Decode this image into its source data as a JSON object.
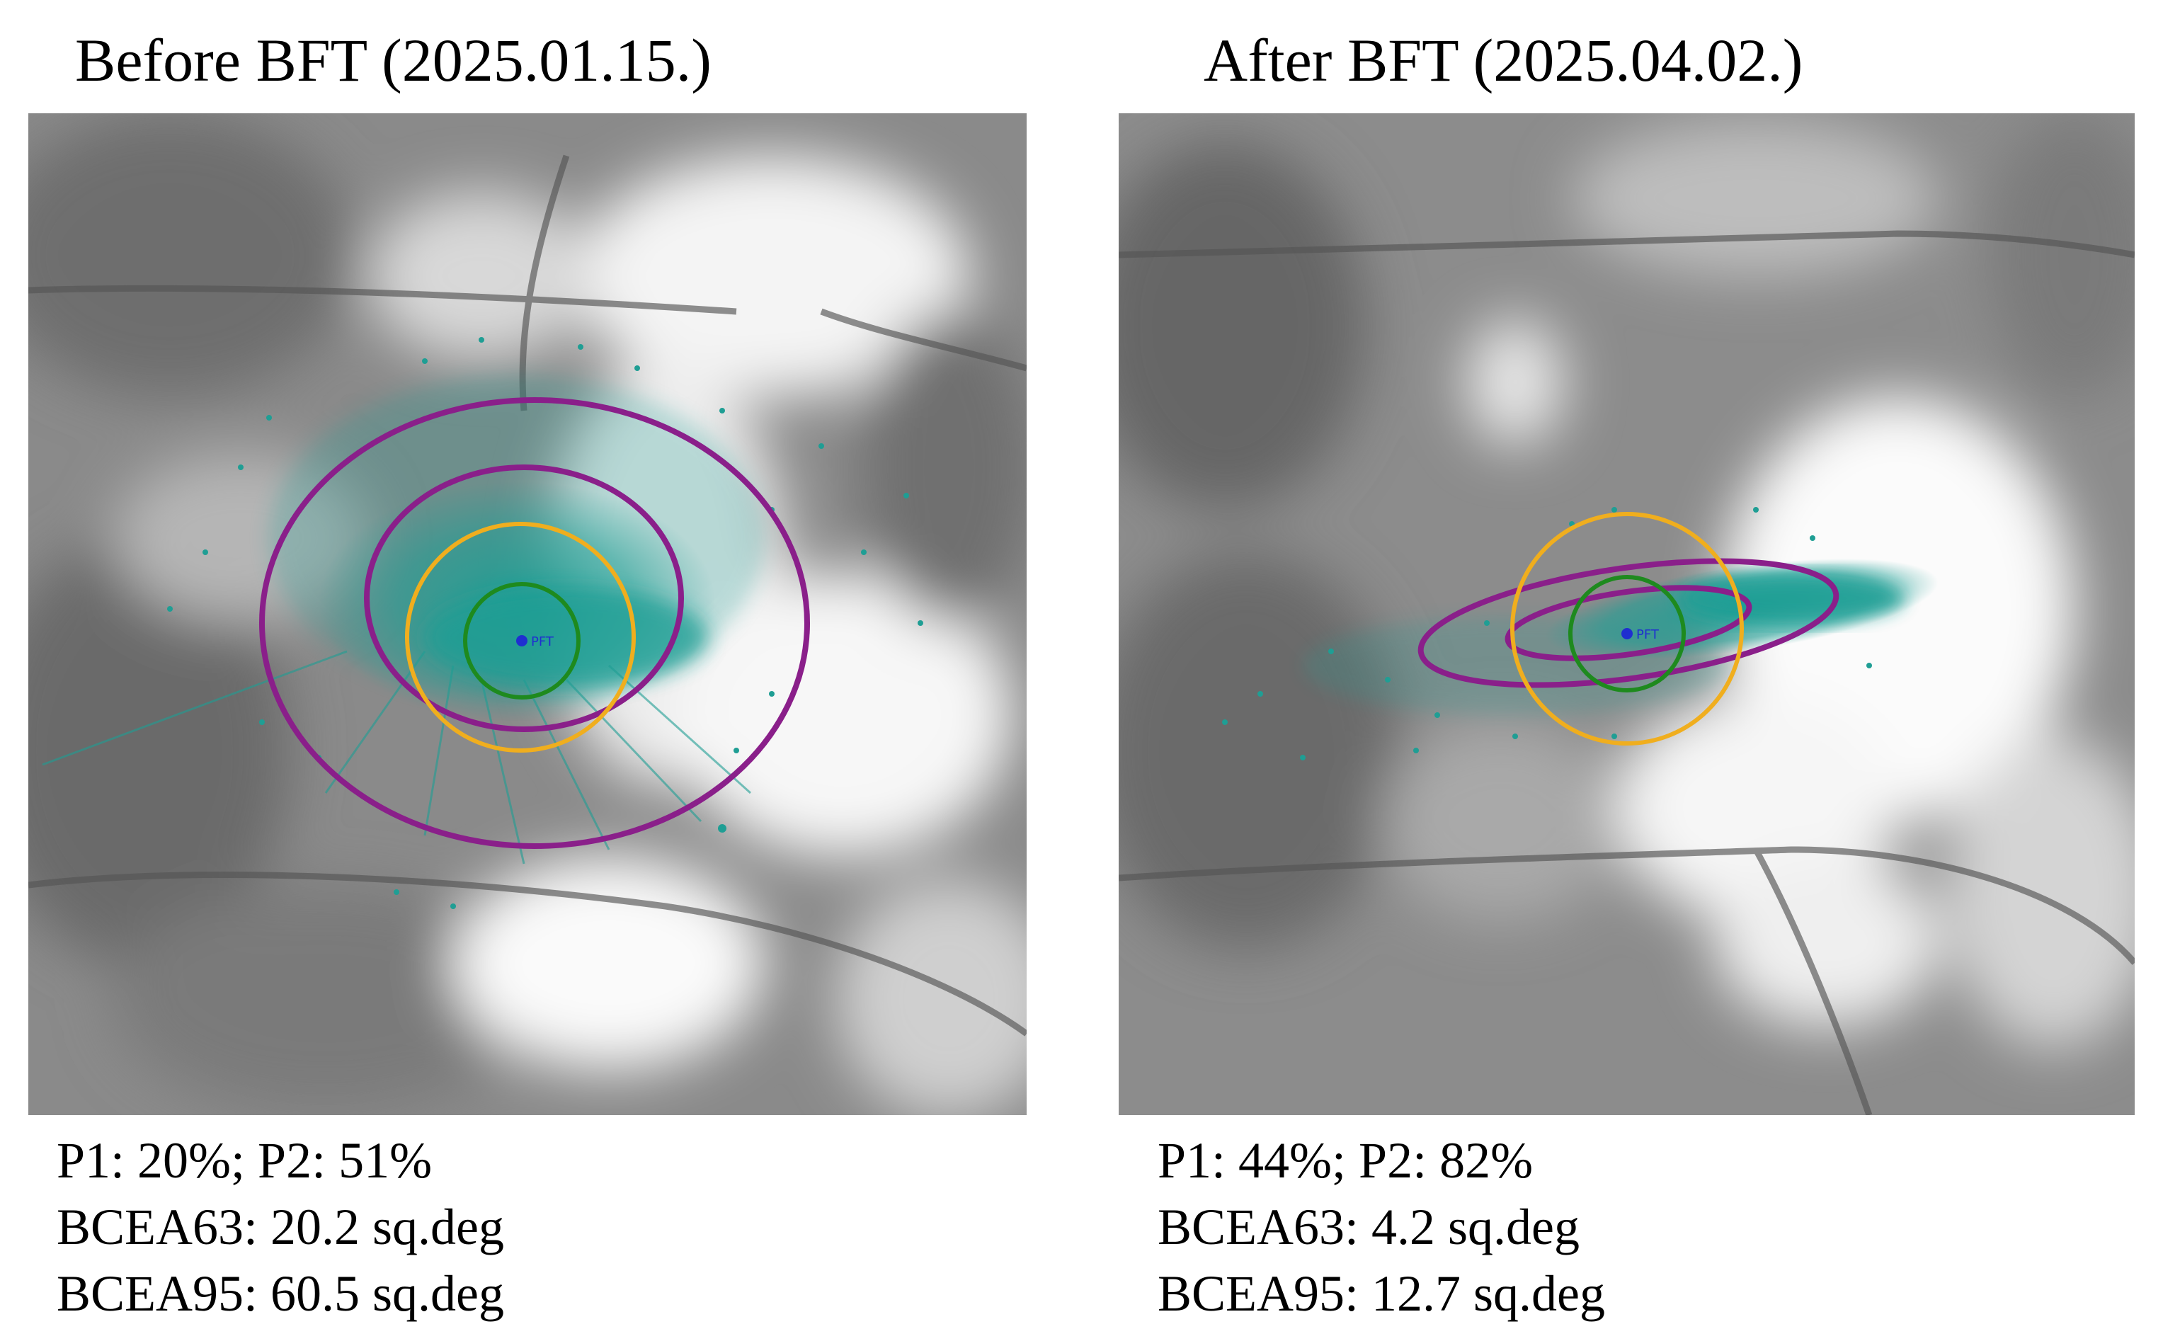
{
  "panels": [
    {
      "title": "Before BFT (2025.01.15.)",
      "fixation_label": "PFT",
      "stats": {
        "p1_p2": "P1: 20%; P2: 51%",
        "bcea63": "BCEA63: 20.2 sq.deg",
        "bcea95": "BCEA95: 60.5 sq.deg"
      }
    },
    {
      "title": "After BFT (2025.04.02.)",
      "fixation_label": "PFT",
      "stats": {
        "p1_p2": "P1: 44%; P2: 82%",
        "bcea63": "BCEA63: 4.2 sq.deg",
        "bcea95": "BCEA95: 12.7 sq.deg"
      }
    }
  ],
  "colors": {
    "fixation_points": "#1f9e94",
    "bcea_ellipse": "#8a1f8a",
    "p1_circle": "#1e8a1e",
    "p2_circle": "#f0ae1e",
    "pft_marker": "#1f2fd0"
  }
}
